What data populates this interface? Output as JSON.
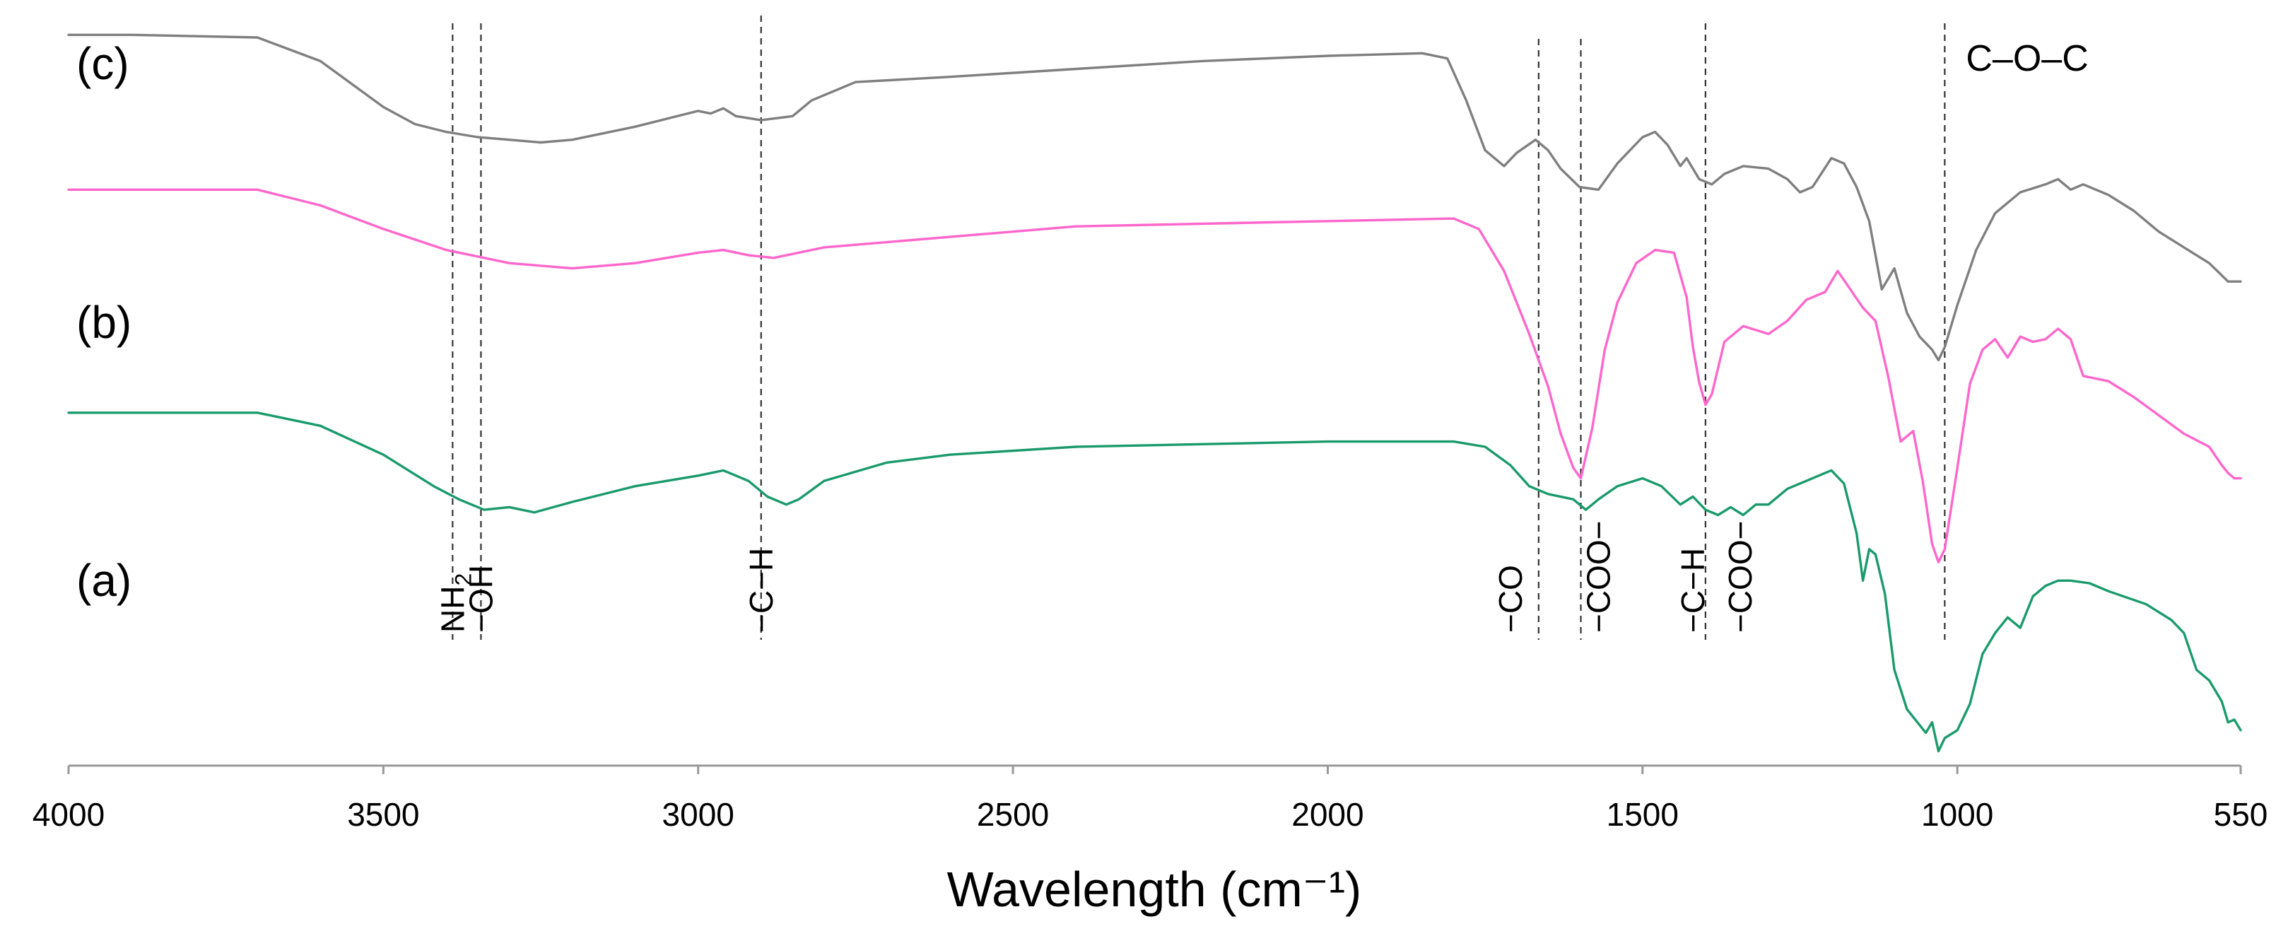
{
  "chart_data": {
    "type": "line",
    "title": "",
    "xlabel": "Wavelength (cm⁻¹)",
    "ylabel": "",
    "xlim": [
      4000,
      550
    ],
    "x_reversed": true,
    "grid": false,
    "xticks": [
      4000,
      3500,
      3000,
      2500,
      2000,
      1500,
      1000,
      550
    ],
    "xtick_labels": [
      "4000",
      "3500",
      "3000",
      "2500",
      "2000",
      "1500",
      "1000",
      "550"
    ],
    "series": [
      {
        "name": "(c)",
        "color": "#7f7f7f",
        "points": [
          [
            4000,
            4.6
          ],
          [
            3900,
            4.6
          ],
          [
            3700,
            4.58
          ],
          [
            3600,
            4.4
          ],
          [
            3500,
            4.05
          ],
          [
            3450,
            3.92
          ],
          [
            3400,
            3.86
          ],
          [
            3350,
            3.82
          ],
          [
            3300,
            3.8
          ],
          [
            3250,
            3.78
          ],
          [
            3200,
            3.8
          ],
          [
            3100,
            3.9
          ],
          [
            3000,
            4.02
          ],
          [
            2980,
            4.0
          ],
          [
            2960,
            4.04
          ],
          [
            2940,
            3.98
          ],
          [
            2900,
            3.95
          ],
          [
            2850,
            3.98
          ],
          [
            2820,
            4.1
          ],
          [
            2750,
            4.24
          ],
          [
            2600,
            4.28
          ],
          [
            2400,
            4.34
          ],
          [
            2200,
            4.4
          ],
          [
            2000,
            4.44
          ],
          [
            1850,
            4.46
          ],
          [
            1810,
            4.42
          ],
          [
            1780,
            4.1
          ],
          [
            1750,
            3.72
          ],
          [
            1720,
            3.6
          ],
          [
            1700,
            3.7
          ],
          [
            1670,
            3.8
          ],
          [
            1650,
            3.72
          ],
          [
            1630,
            3.58
          ],
          [
            1600,
            3.44
          ],
          [
            1570,
            3.42
          ],
          [
            1540,
            3.62
          ],
          [
            1500,
            3.82
          ],
          [
            1480,
            3.86
          ],
          [
            1460,
            3.76
          ],
          [
            1440,
            3.6
          ],
          [
            1430,
            3.66
          ],
          [
            1410,
            3.5
          ],
          [
            1390,
            3.46
          ],
          [
            1370,
            3.54
          ],
          [
            1340,
            3.6
          ],
          [
            1300,
            3.58
          ],
          [
            1270,
            3.5
          ],
          [
            1250,
            3.4
          ],
          [
            1230,
            3.44
          ],
          [
            1200,
            3.66
          ],
          [
            1180,
            3.62
          ],
          [
            1160,
            3.44
          ],
          [
            1140,
            3.18
          ],
          [
            1120,
            2.66
          ],
          [
            1100,
            2.82
          ],
          [
            1080,
            2.48
          ],
          [
            1060,
            2.3
          ],
          [
            1040,
            2.2
          ],
          [
            1030,
            2.12
          ],
          [
            1020,
            2.22
          ],
          [
            1000,
            2.54
          ],
          [
            970,
            2.96
          ],
          [
            940,
            3.24
          ],
          [
            900,
            3.4
          ],
          [
            860,
            3.46
          ],
          [
            840,
            3.5
          ],
          [
            820,
            3.42
          ],
          [
            800,
            3.46
          ],
          [
            760,
            3.38
          ],
          [
            720,
            3.26
          ],
          [
            680,
            3.1
          ],
          [
            640,
            2.98
          ],
          [
            600,
            2.86
          ],
          [
            570,
            2.72
          ],
          [
            550,
            2.72
          ]
        ]
      },
      {
        "name": "(b)",
        "color": "#ff66cc",
        "points": [
          [
            4000,
            3.42
          ],
          [
            3700,
            3.42
          ],
          [
            3600,
            3.3
          ],
          [
            3500,
            3.12
          ],
          [
            3400,
            2.96
          ],
          [
            3300,
            2.86
          ],
          [
            3200,
            2.82
          ],
          [
            3100,
            2.86
          ],
          [
            3000,
            2.94
          ],
          [
            2960,
            2.96
          ],
          [
            2920,
            2.92
          ],
          [
            2880,
            2.9
          ],
          [
            2800,
            2.98
          ],
          [
            2600,
            3.06
          ],
          [
            2400,
            3.14
          ],
          [
            2200,
            3.16
          ],
          [
            2000,
            3.18
          ],
          [
            1800,
            3.2
          ],
          [
            1760,
            3.12
          ],
          [
            1720,
            2.8
          ],
          [
            1680,
            2.32
          ],
          [
            1650,
            1.92
          ],
          [
            1630,
            1.56
          ],
          [
            1610,
            1.3
          ],
          [
            1598,
            1.22
          ],
          [
            1580,
            1.6
          ],
          [
            1560,
            2.2
          ],
          [
            1540,
            2.56
          ],
          [
            1510,
            2.86
          ],
          [
            1480,
            2.96
          ],
          [
            1450,
            2.94
          ],
          [
            1430,
            2.6
          ],
          [
            1420,
            2.22
          ],
          [
            1410,
            1.95
          ],
          [
            1400,
            1.78
          ],
          [
            1390,
            1.86
          ],
          [
            1370,
            2.26
          ],
          [
            1340,
            2.38
          ],
          [
            1300,
            2.32
          ],
          [
            1270,
            2.42
          ],
          [
            1240,
            2.58
          ],
          [
            1210,
            2.64
          ],
          [
            1190,
            2.8
          ],
          [
            1170,
            2.66
          ],
          [
            1150,
            2.52
          ],
          [
            1130,
            2.42
          ],
          [
            1110,
            2.0
          ],
          [
            1090,
            1.5
          ],
          [
            1070,
            1.58
          ],
          [
            1055,
            1.2
          ],
          [
            1040,
            0.72
          ],
          [
            1030,
            0.58
          ],
          [
            1020,
            0.68
          ],
          [
            1000,
            1.3
          ],
          [
            980,
            1.94
          ],
          [
            960,
            2.2
          ],
          [
            940,
            2.28
          ],
          [
            920,
            2.14
          ],
          [
            900,
            2.3
          ],
          [
            880,
            2.26
          ],
          [
            860,
            2.28
          ],
          [
            840,
            2.36
          ],
          [
            820,
            2.28
          ],
          [
            800,
            2.0
          ],
          [
            780,
            1.98
          ],
          [
            760,
            1.96
          ],
          [
            720,
            1.84
          ],
          [
            680,
            1.7
          ],
          [
            640,
            1.56
          ],
          [
            600,
            1.46
          ],
          [
            580,
            1.32
          ],
          [
            570,
            1.26
          ],
          [
            560,
            1.22
          ],
          [
            550,
            1.22
          ]
        ]
      },
      {
        "name": "(a)",
        "color": "#1a9a6c",
        "points": [
          [
            4000,
            1.72
          ],
          [
            3700,
            1.72
          ],
          [
            3600,
            1.62
          ],
          [
            3500,
            1.4
          ],
          [
            3420,
            1.16
          ],
          [
            3380,
            1.06
          ],
          [
            3340,
            0.98
          ],
          [
            3300,
            1.0
          ],
          [
            3260,
            0.96
          ],
          [
            3200,
            1.04
          ],
          [
            3100,
            1.16
          ],
          [
            3000,
            1.24
          ],
          [
            2960,
            1.28
          ],
          [
            2920,
            1.2
          ],
          [
            2890,
            1.08
          ],
          [
            2860,
            1.02
          ],
          [
            2840,
            1.06
          ],
          [
            2800,
            1.2
          ],
          [
            2700,
            1.34
          ],
          [
            2600,
            1.4
          ],
          [
            2400,
            1.46
          ],
          [
            2200,
            1.48
          ],
          [
            2000,
            1.5
          ],
          [
            1800,
            1.5
          ],
          [
            1750,
            1.46
          ],
          [
            1710,
            1.32
          ],
          [
            1680,
            1.16
          ],
          [
            1650,
            1.1
          ],
          [
            1610,
            1.06
          ],
          [
            1590,
            0.98
          ],
          [
            1570,
            1.06
          ],
          [
            1540,
            1.16
          ],
          [
            1500,
            1.22
          ],
          [
            1470,
            1.16
          ],
          [
            1440,
            1.02
          ],
          [
            1420,
            1.08
          ],
          [
            1400,
            0.98
          ],
          [
            1380,
            0.94
          ],
          [
            1360,
            1.0
          ],
          [
            1340,
            0.94
          ],
          [
            1320,
            1.02
          ],
          [
            1300,
            1.02
          ],
          [
            1270,
            1.14
          ],
          [
            1240,
            1.2
          ],
          [
            1210,
            1.26
          ],
          [
            1200,
            1.28
          ],
          [
            1180,
            1.18
          ],
          [
            1160,
            0.8
          ],
          [
            1150,
            0.44
          ],
          [
            1140,
            0.68
          ],
          [
            1130,
            0.64
          ],
          [
            1115,
            0.34
          ],
          [
            1100,
            -0.24
          ],
          [
            1080,
            -0.54
          ],
          [
            1060,
            -0.66
          ],
          [
            1050,
            -0.72
          ],
          [
            1040,
            -0.64
          ],
          [
            1030,
            -0.86
          ],
          [
            1020,
            -0.76
          ],
          [
            1000,
            -0.7
          ],
          [
            980,
            -0.5
          ],
          [
            960,
            -0.12
          ],
          [
            940,
            0.04
          ],
          [
            920,
            0.16
          ],
          [
            900,
            0.08
          ],
          [
            880,
            0.32
          ],
          [
            860,
            0.4
          ],
          [
            840,
            0.44
          ],
          [
            820,
            0.44
          ],
          [
            790,
            0.42
          ],
          [
            760,
            0.36
          ],
          [
            700,
            0.26
          ],
          [
            660,
            0.14
          ],
          [
            640,
            0.04
          ],
          [
            620,
            -0.24
          ],
          [
            600,
            -0.32
          ],
          [
            580,
            -0.48
          ],
          [
            570,
            -0.64
          ],
          [
            560,
            -0.62
          ],
          [
            550,
            -0.7
          ]
        ]
      }
    ],
    "series_labels": [
      "(a)",
      "(b)",
      "(c)"
    ],
    "reference_lines": [
      3390,
      3345,
      2900,
      1665,
      1598,
      1400,
      1020
    ],
    "peak_labels": [
      {
        "x": 3390,
        "text": "NH",
        "subscript": "2"
      },
      {
        "x": 3345,
        "text": "−OH"
      },
      {
        "x": 2900,
        "text": "−C−H"
      },
      {
        "x": 1710,
        "text": "−CO"
      },
      {
        "x": 1570,
        "text": "−COO−"
      },
      {
        "x": 1420,
        "text": "−C−H"
      },
      {
        "x": 1345,
        "text": "−COO−"
      }
    ],
    "top_annotation": {
      "x": 1020,
      "text": "C–O–C"
    }
  }
}
